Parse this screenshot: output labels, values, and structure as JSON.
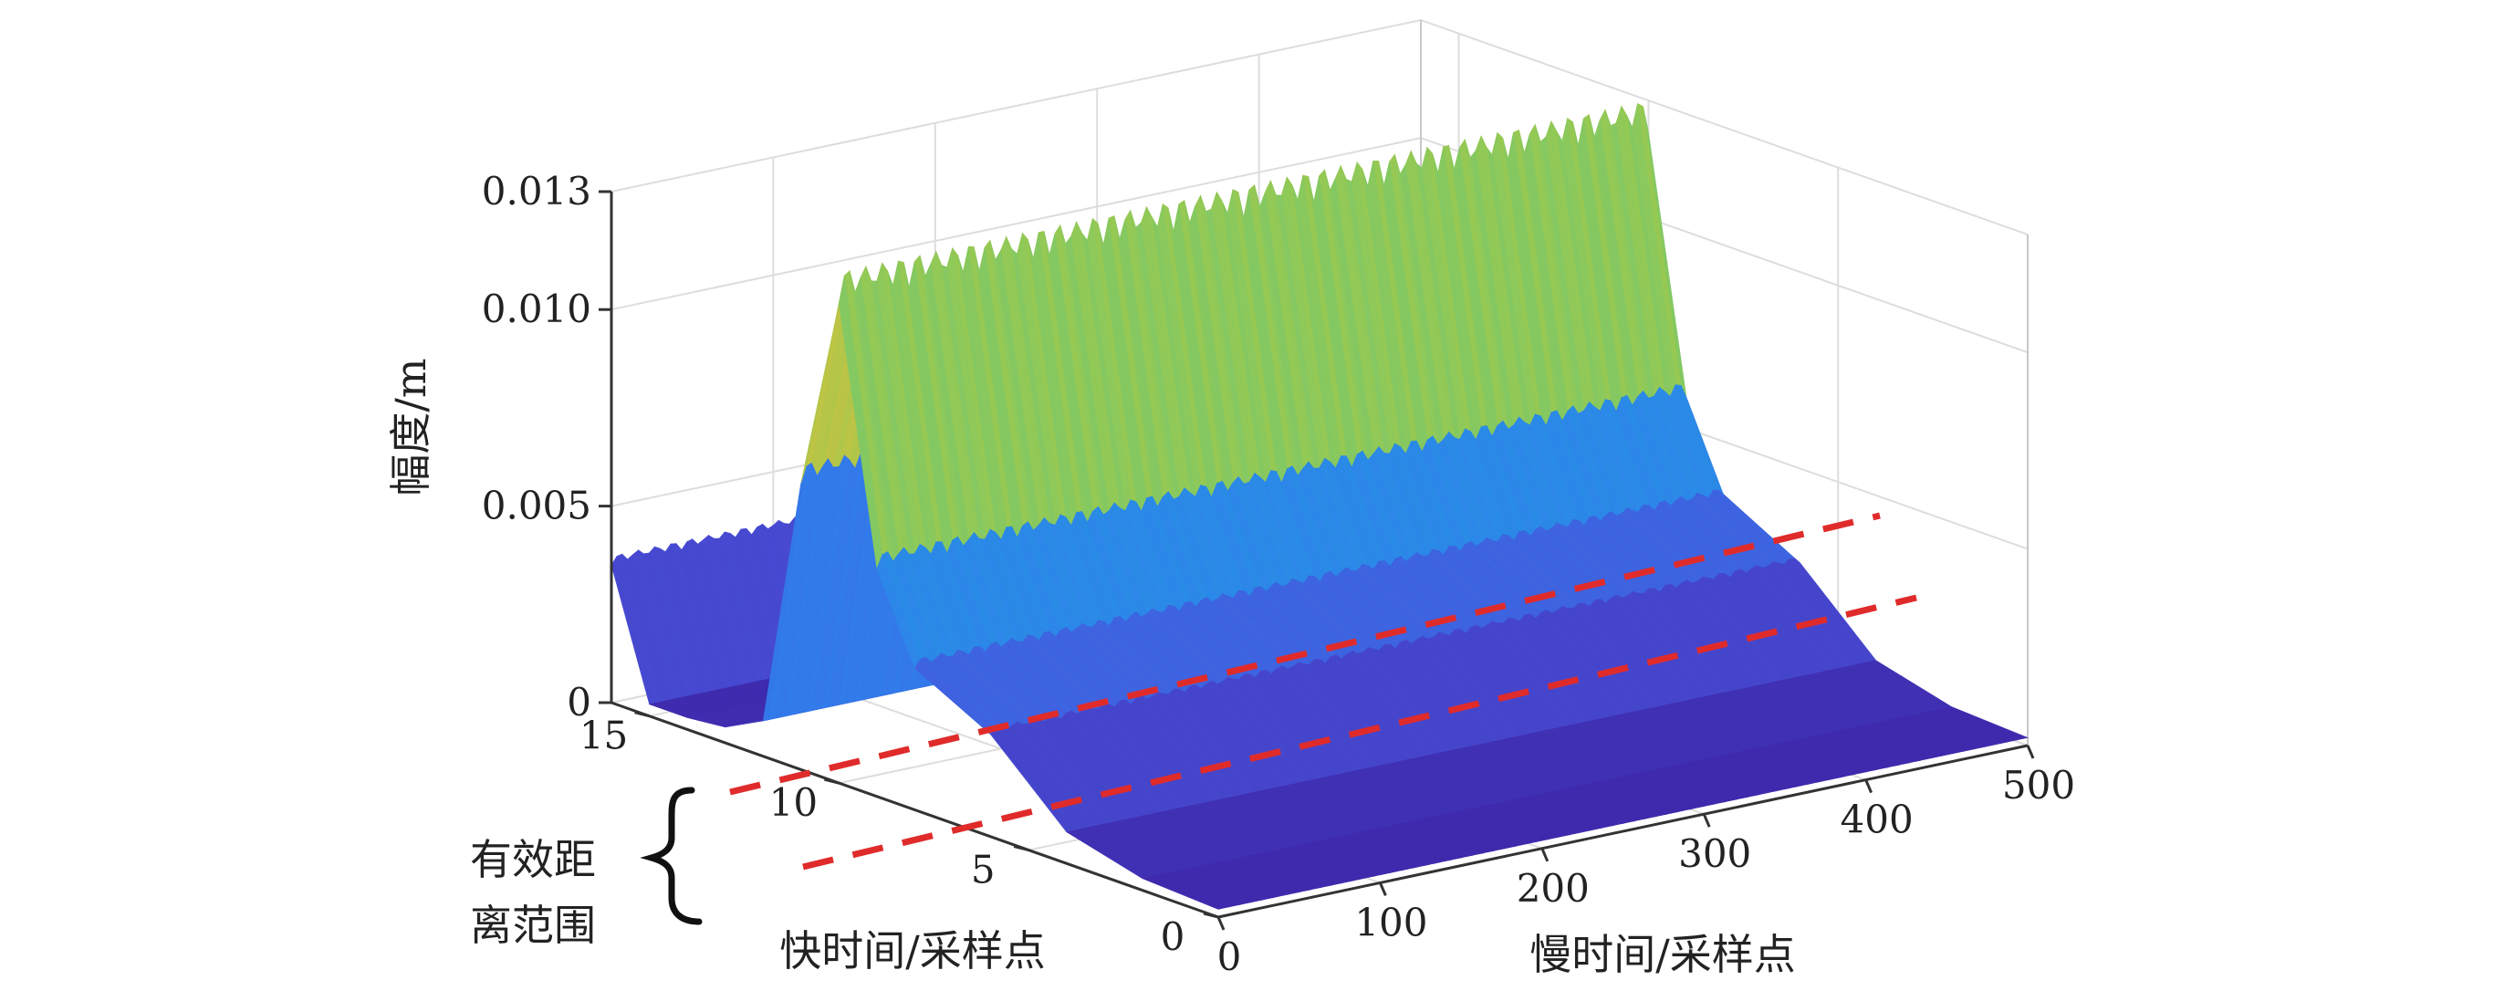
{
  "chart_data": {
    "type": "surface",
    "title": "",
    "zlabel": "幅度/m",
    "ylabel": "快时间/采样点",
    "xlabel": "慢时间/采样点",
    "x_axis": {
      "label": "慢时间/采样点",
      "range": [
        0,
        500
      ],
      "ticks": [
        0,
        100,
        200,
        300,
        400,
        500
      ]
    },
    "y_axis": {
      "label": "快时间/采样点",
      "range": [
        0,
        16
      ],
      "ticks": [
        0,
        5,
        10,
        15
      ]
    },
    "z_axis": {
      "label": "幅度/m",
      "range": [
        0,
        0.013
      ],
      "ticks": [
        "0",
        "0.005",
        "0.010",
        "0.013"
      ]
    },
    "grid": true,
    "colormap": "parula",
    "profile": {
      "fast_time": [
        0,
        2,
        4,
        6,
        8,
        9,
        10,
        11,
        12,
        13,
        14,
        15,
        16
      ],
      "amplitude": [
        0.0002,
        0.0003,
        0.0008,
        0.0026,
        0.0036,
        0.0058,
        0.0122,
        0.0073,
        0.0009,
        0.0004,
        0.0003,
        0.0003,
        0.0035
      ]
    },
    "slow_time_ripple": {
      "cycles": 46,
      "amplitude": 0.0004
    },
    "annotations": [
      {
        "text": "有效距离范围",
        "lines": [
          "有效距",
          "离范围"
        ]
      }
    ]
  },
  "colors": {
    "axis": "#333333",
    "grid": "#dddddd",
    "dashed_line": "#e02b2b",
    "brace": "#111111"
  }
}
